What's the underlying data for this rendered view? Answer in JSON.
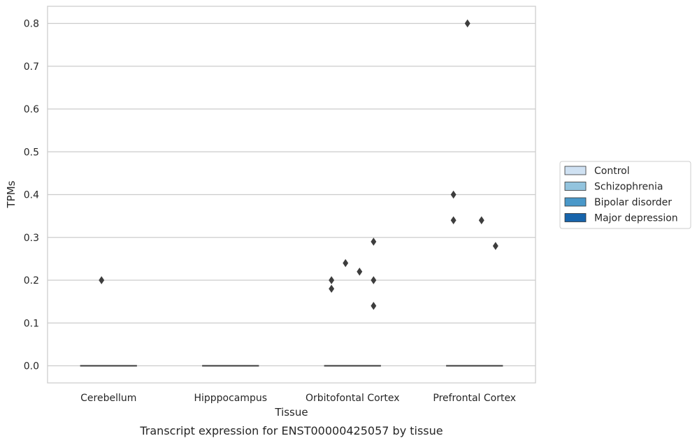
{
  "chart_data": {
    "type": "box",
    "title": "",
    "caption": "Transcript expression for ENST00000425057 by tissue",
    "xlabel": "Tissue",
    "ylabel": "TPMs",
    "ylim": [
      -0.04,
      0.84
    ],
    "yticks": [
      "0.0",
      "0.1",
      "0.2",
      "0.3",
      "0.4",
      "0.5",
      "0.6",
      "0.7",
      "0.8"
    ],
    "ytick_values": [
      0,
      0.1,
      0.2,
      0.3,
      0.4,
      0.5,
      0.6,
      0.7,
      0.8
    ],
    "grid": "horizontal",
    "categories": [
      "Cerebellum",
      "Hipppocampus",
      "Orbitofontal Cortex",
      "Prefrontal Cortex"
    ],
    "series": [
      {
        "name": "Control",
        "color": "#cfe1f2"
      },
      {
        "name": "Schizophrenia",
        "color": "#93c4de"
      },
      {
        "name": "Bipolar disorder",
        "color": "#4a98c9"
      },
      {
        "name": "Major depression",
        "color": "#1764ab"
      }
    ],
    "median_line_color": "#3a3a3a",
    "boxes": [
      {
        "category": "Cerebellum",
        "series": "Control",
        "median": 0,
        "q1": 0,
        "q3": 0
      },
      {
        "category": "Cerebellum",
        "series": "Schizophrenia",
        "median": 0,
        "q1": 0,
        "q3": 0
      },
      {
        "category": "Cerebellum",
        "series": "Bipolar disorder",
        "median": 0,
        "q1": 0,
        "q3": 0
      },
      {
        "category": "Cerebellum",
        "series": "Major depression",
        "median": 0,
        "q1": 0,
        "q3": 0
      },
      {
        "category": "Hipppocampus",
        "series": "Control",
        "median": 0,
        "q1": 0,
        "q3": 0
      },
      {
        "category": "Hipppocampus",
        "series": "Schizophrenia",
        "median": 0,
        "q1": 0,
        "q3": 0
      },
      {
        "category": "Hipppocampus",
        "series": "Bipolar disorder",
        "median": 0,
        "q1": 0,
        "q3": 0
      },
      {
        "category": "Hipppocampus",
        "series": "Major depression",
        "median": 0,
        "q1": 0,
        "q3": 0
      },
      {
        "category": "Orbitofontal Cortex",
        "series": "Control",
        "median": 0,
        "q1": 0,
        "q3": 0
      },
      {
        "category": "Orbitofontal Cortex",
        "series": "Schizophrenia",
        "median": 0,
        "q1": 0,
        "q3": 0
      },
      {
        "category": "Orbitofontal Cortex",
        "series": "Bipolar disorder",
        "median": 0,
        "q1": 0,
        "q3": 0
      },
      {
        "category": "Orbitofontal Cortex",
        "series": "Major depression",
        "median": 0,
        "q1": 0,
        "q3": 0
      },
      {
        "category": "Prefrontal Cortex",
        "series": "Control",
        "median": 0,
        "q1": 0,
        "q3": 0
      },
      {
        "category": "Prefrontal Cortex",
        "series": "Schizophrenia",
        "median": 0,
        "q1": 0,
        "q3": 0
      },
      {
        "category": "Prefrontal Cortex",
        "series": "Bipolar disorder",
        "median": 0,
        "q1": 0,
        "q3": 0
      },
      {
        "category": "Prefrontal Cortex",
        "series": "Major depression",
        "median": 0,
        "q1": 0,
        "q3": 0
      }
    ],
    "outliers": [
      {
        "category": "Cerebellum",
        "series": "Schizophrenia",
        "values": [
          0.2
        ]
      },
      {
        "category": "Orbitofontal Cortex",
        "series": "Control",
        "values": [
          0.2,
          0.18
        ]
      },
      {
        "category": "Orbitofontal Cortex",
        "series": "Schizophrenia",
        "values": [
          0.24
        ]
      },
      {
        "category": "Orbitofontal Cortex",
        "series": "Bipolar disorder",
        "values": [
          0.22
        ]
      },
      {
        "category": "Orbitofontal Cortex",
        "series": "Major depression",
        "values": [
          0.29,
          0.2,
          0.14
        ]
      },
      {
        "category": "Prefrontal Cortex",
        "series": "Control",
        "values": [
          0.4,
          0.34
        ]
      },
      {
        "category": "Prefrontal Cortex",
        "series": "Schizophrenia",
        "values": [
          0.8
        ]
      },
      {
        "category": "Prefrontal Cortex",
        "series": "Bipolar disorder",
        "values": [
          0.34
        ]
      },
      {
        "category": "Prefrontal Cortex",
        "series": "Major depression",
        "values": [
          0.28
        ]
      }
    ],
    "legend": {
      "position": "right",
      "entries": [
        "Control",
        "Schizophrenia",
        "Bipolar disorder",
        "Major depression"
      ]
    }
  }
}
